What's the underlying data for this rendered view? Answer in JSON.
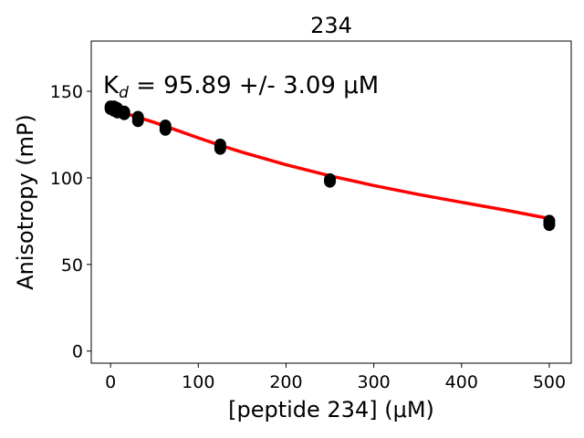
{
  "chart_data": {
    "type": "scatter",
    "title": "234",
    "xlabel": "[peptide 234] (μM)",
    "ylabel": "Anisotropy (mP)",
    "xlim": [
      -22,
      525
    ],
    "ylim": [
      -7,
      179
    ],
    "xticks": [
      0,
      100,
      200,
      300,
      400,
      500
    ],
    "yticks": [
      0,
      50,
      100,
      150
    ],
    "annotation": {
      "prefix": "K",
      "subscript": "d",
      "text": " = 95.89 +/- 3.09 μM"
    },
    "grid": false,
    "series": [
      {
        "kind": "points",
        "color": "#000000",
        "x": [
          0,
          0,
          3.9,
          3.9,
          7.8,
          7.8,
          15.6,
          15.6,
          31.25,
          31.25,
          62.5,
          62.5,
          125,
          125,
          250,
          250,
          500,
          500
        ],
        "y": [
          141,
          140,
          141,
          139,
          140,
          138,
          138,
          137,
          135,
          133,
          130,
          128,
          119,
          117,
          99,
          98,
          75,
          73
        ]
      },
      {
        "kind": "fit",
        "color": "#ff0000",
        "x": [
          0,
          25,
          50,
          75,
          100,
          125,
          150,
          200,
          250,
          300,
          350,
          400,
          450,
          500
        ],
        "y": [
          140,
          136.0,
          132.0,
          127.6,
          123.1,
          118.8,
          114.8,
          107.6,
          101.2,
          95.6,
          90.5,
          85.9,
          81.4,
          76.5
        ]
      }
    ]
  }
}
